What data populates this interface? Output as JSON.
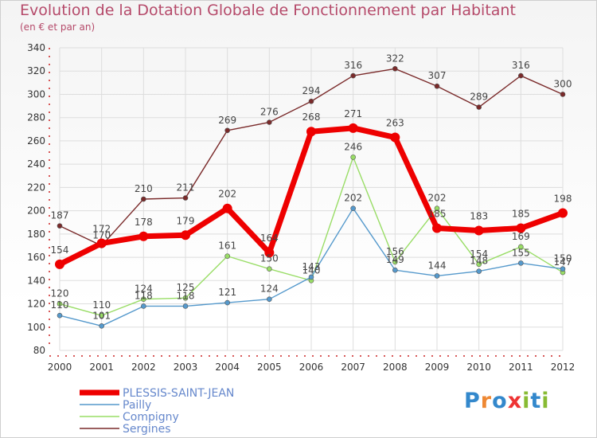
{
  "chart_data": {
    "type": "line",
    "title": "Evolution de la Dotation Globale de Fonctionnement par Habitant",
    "subtitle": "(en € et par an)",
    "xlabel": "",
    "ylabel": "",
    "ylim": [
      80,
      340
    ],
    "yticks": [
      80,
      100,
      120,
      140,
      160,
      180,
      200,
      220,
      240,
      260,
      280,
      300,
      320,
      340
    ],
    "x": [
      "2000",
      "2001",
      "2002",
      "2003",
      "2004",
      "2005",
      "2006",
      "2007",
      "2008",
      "2009",
      "2010",
      "2011",
      "2012"
    ],
    "legend_position": "bottom-left",
    "grid": true,
    "series": [
      {
        "name": "Sergines",
        "color": "#7a2a2a",
        "values": [
          187,
          170,
          210,
          211,
          269,
          276,
          294,
          316,
          322,
          307,
          289,
          316,
          300
        ]
      },
      {
        "name": "Compigny",
        "color": "#99dd66",
        "values": [
          120,
          110,
          124,
          125,
          161,
          150,
          140,
          246,
          156,
          202,
          154,
          169,
          147
        ]
      },
      {
        "name": "Pailly",
        "color": "#5599cc",
        "values": [
          110,
          101,
          118,
          118,
          121,
          124,
          143,
          202,
          149,
          144,
          148,
          155,
          150
        ]
      },
      {
        "name": "PLESSIS-SAINT-JEAN",
        "color": "#ee0000",
        "values": [
          154,
          172,
          178,
          179,
          202,
          164,
          268,
          271,
          263,
          185,
          183,
          185,
          198
        ]
      }
    ],
    "legend_order": [
      "PLESSIS-SAINT-JEAN",
      "Pailly",
      "Compigny",
      "Sergines"
    ]
  },
  "branding": {
    "logo_text": "Proxiti",
    "letters": [
      {
        "ch": "P",
        "color": "#3388cc"
      },
      {
        "ch": "r",
        "color": "#ee8833"
      },
      {
        "ch": "o",
        "color": "#3388cc"
      },
      {
        "ch": "x",
        "color": "#ee3333"
      },
      {
        "ch": "i",
        "color": "#88bb33"
      },
      {
        "ch": "t",
        "color": "#3388cc"
      },
      {
        "ch": "i",
        "color": "#88bb33"
      }
    ]
  }
}
